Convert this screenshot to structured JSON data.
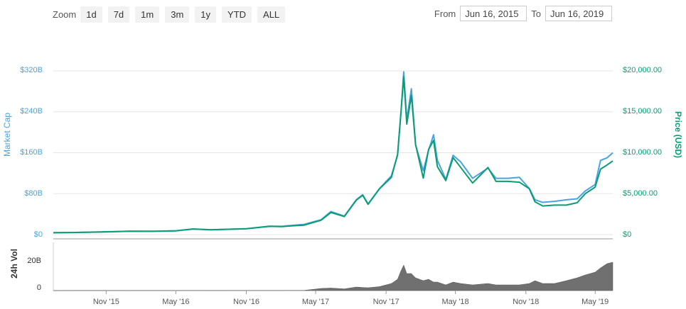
{
  "toolbar": {
    "zoom_label": "Zoom",
    "zoom_options": [
      "1d",
      "7d",
      "1m",
      "3m",
      "1y",
      "YTD",
      "ALL"
    ]
  },
  "range": {
    "from_label": "From",
    "from_value": "Jun 16, 2015",
    "to_label": "To",
    "to_value": "Jun 16, 2019"
  },
  "colors": {
    "market_cap": "#4aa3df",
    "price": "#0a9d74",
    "volume": "#707070",
    "grid": "#e6e6e6"
  },
  "chart_data": [
    {
      "type": "line",
      "ylabel_left": "Market Cap",
      "ylabel_right": "Price (USD)",
      "left_ticks": [
        "$0",
        "$80B",
        "$160B",
        "$240B",
        "$320B"
      ],
      "right_ticks": [
        "$0",
        "$5,000.00",
        "$10,000.00",
        "$15,000.00",
        "$20,000.00"
      ],
      "x_ticks": [
        "Nov '15",
        "May '16",
        "Nov '16",
        "May '17",
        "Nov '17",
        "May '18",
        "Nov '18",
        "May '19"
      ],
      "x_tick_dates": [
        "2015-11-01",
        "2016-05-01",
        "2016-11-01",
        "2017-05-01",
        "2017-11-01",
        "2018-05-01",
        "2018-11-01",
        "2019-05-01"
      ],
      "ylim_left": [
        0,
        320
      ],
      "ylim_right": [
        0,
        20000
      ],
      "x": [
        "2015-06-16",
        "2015-08-01",
        "2015-11-01",
        "2016-01-01",
        "2016-03-01",
        "2016-05-01",
        "2016-06-15",
        "2016-08-01",
        "2016-11-01",
        "2017-01-01",
        "2017-02-01",
        "2017-03-01",
        "2017-04-01",
        "2017-05-15",
        "2017-06-10",
        "2017-07-15",
        "2017-08-15",
        "2017-09-01",
        "2017-09-15",
        "2017-10-15",
        "2017-11-15",
        "2017-12-01",
        "2017-12-10",
        "2017-12-17",
        "2017-12-25",
        "2018-01-06",
        "2018-01-17",
        "2018-02-06",
        "2018-02-20",
        "2018-03-05",
        "2018-03-15",
        "2018-04-06",
        "2018-04-25",
        "2018-05-15",
        "2018-06-15",
        "2018-07-25",
        "2018-08-15",
        "2018-09-15",
        "2018-10-15",
        "2018-11-10",
        "2018-11-25",
        "2018-12-15",
        "2019-01-15",
        "2019-02-15",
        "2019-03-15",
        "2019-04-05",
        "2019-05-01",
        "2019-05-15",
        "2019-06-01",
        "2019-06-16"
      ],
      "series": [
        {
          "name": "Market Cap",
          "values": [
            3.5,
            4,
            5.5,
            6.5,
            6.5,
            7.5,
            11,
            9.5,
            11.5,
            16.5,
            16,
            18,
            20,
            29,
            45,
            36,
            68,
            78,
            60,
            90,
            115,
            155,
            240,
            318,
            225,
            285,
            175,
            125,
            165,
            195,
            145,
            108,
            155,
            142,
            110,
            130,
            110,
            110,
            112,
            90,
            68,
            63,
            65,
            68,
            70,
            85,
            98,
            145,
            150,
            160
          ]
        },
        {
          "name": "Price (USD)",
          "values": [
            235,
            250,
            330,
            410,
            400,
            460,
            680,
            590,
            720,
            1000,
            980,
            1070,
            1150,
            1750,
            2700,
            2200,
            4200,
            4800,
            3700,
            5600,
            7000,
            9800,
            15000,
            19300,
            13500,
            17000,
            11000,
            6900,
            10400,
            11500,
            8300,
            6600,
            9400,
            8200,
            6300,
            8200,
            6500,
            6500,
            6400,
            5600,
            4000,
            3500,
            3600,
            3600,
            3900,
            5000,
            5800,
            8000,
            8500,
            9000
          ]
        },
        {
          "name": "24h Vol",
          "values": [
            0.02,
            0.03,
            0.04,
            0.04,
            0.04,
            0.06,
            0.1,
            0.06,
            0.08,
            0.12,
            0.1,
            0.15,
            0.15,
            1.5,
            1.8,
            1.2,
            2.5,
            2.2,
            2.0,
            2.8,
            5,
            8,
            14,
            18,
            12,
            12,
            9,
            7,
            8,
            6,
            6,
            4,
            6,
            5,
            4,
            5,
            4,
            4,
            4,
            5,
            7,
            5,
            5,
            7,
            9,
            11,
            13,
            16,
            19,
            20
          ]
        }
      ]
    },
    {
      "type": "bar",
      "ylabel": "24h Vol",
      "ticks": [
        "0",
        "20B"
      ],
      "ylim": [
        0,
        32
      ]
    }
  ]
}
